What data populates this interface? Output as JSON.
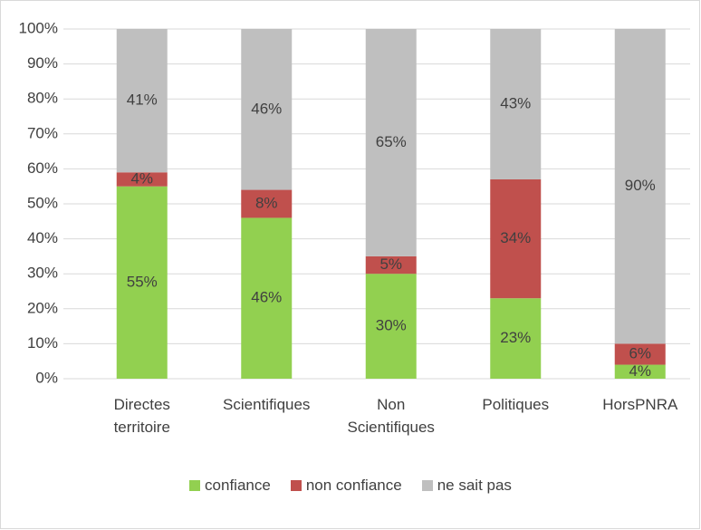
{
  "chart_data": {
    "type": "stacked_bar",
    "categories": [
      "Directes territoire",
      "Scientifiques",
      "Non Scientifiques",
      "Politiques",
      "HorsPNRA"
    ],
    "series": [
      {
        "name": "confiance",
        "color": "#92d050",
        "values": [
          55,
          46,
          30,
          23,
          4
        ],
        "value_labels": [
          "55%",
          "46%",
          "30%",
          "23%",
          "4%"
        ]
      },
      {
        "name": "non confiance",
        "color": "#c0504d",
        "values": [
          4,
          8,
          5,
          34,
          6
        ],
        "value_labels": [
          "4%",
          "8%",
          "5%",
          "34%",
          "6%"
        ]
      },
      {
        "name": "ne sait pas",
        "color": "#bfbfbf",
        "values": [
          41,
          46,
          65,
          43,
          90
        ],
        "value_labels": [
          "41%",
          "46%",
          "65%",
          "43%",
          "90%"
        ]
      }
    ],
    "ylim": [
      0,
      100
    ],
    "yticks": [
      {
        "value": 0,
        "label": "0%"
      },
      {
        "value": 10,
        "label": "10%"
      },
      {
        "value": 20,
        "label": "20%"
      },
      {
        "value": 30,
        "label": "30%"
      },
      {
        "value": 40,
        "label": "40%"
      },
      {
        "value": 50,
        "label": "50%"
      },
      {
        "value": 60,
        "label": "60%"
      },
      {
        "value": 70,
        "label": "70%"
      },
      {
        "value": 80,
        "label": "80%"
      },
      {
        "value": 90,
        "label": "90%"
      },
      {
        "value": 100,
        "label": "100%"
      }
    ],
    "grid": true,
    "legend": "bottom"
  }
}
